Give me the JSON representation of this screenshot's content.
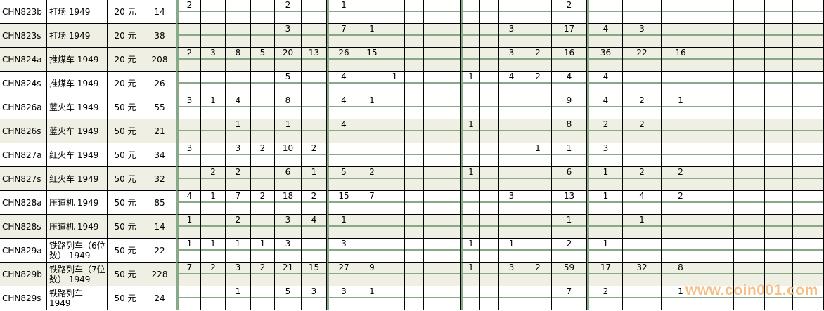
{
  "table": {
    "rows": [
      {
        "code": "CHN823b",
        "name": "打场 1949",
        "denom": "20 元",
        "count": "14",
        "shaded": false,
        "values": [
          "2",
          "",
          "",
          "",
          "2",
          "",
          "1",
          "",
          "",
          "",
          "",
          "",
          "",
          "",
          "",
          "",
          "2",
          "",
          "",
          "",
          "",
          "",
          "",
          ""
        ]
      },
      {
        "code": "CHN823s",
        "name": "打场 1949",
        "denom": "20 元",
        "count": "38",
        "shaded": true,
        "values": [
          "",
          "",
          "",
          "",
          "3",
          "",
          "7",
          "1",
          "",
          "",
          "",
          "",
          "",
          "",
          "3",
          "",
          "17",
          "4",
          "3",
          "",
          "",
          "",
          "",
          ""
        ]
      },
      {
        "code": "CHN824a",
        "name": "推煤车 1949",
        "denom": "20 元",
        "count": "208",
        "shaded": true,
        "values": [
          "2",
          "3",
          "8",
          "5",
          "20",
          "13",
          "26",
          "15",
          "",
          "",
          "",
          "",
          "",
          "",
          "3",
          "2",
          "16",
          "36",
          "22",
          "16",
          "",
          "",
          "",
          ""
        ]
      },
      {
        "code": "CHN824s",
        "name": "推煤车 1949",
        "denom": "20 元",
        "count": "26",
        "shaded": false,
        "values": [
          "",
          "",
          "",
          "",
          "5",
          "",
          "4",
          "",
          "1",
          "",
          "",
          "",
          "1",
          "",
          "4",
          "2",
          "4",
          "4",
          "",
          "",
          "",
          "",
          "",
          ""
        ]
      },
      {
        "code": "CHN826a",
        "name": "蓝火车 1949",
        "denom": "50 元",
        "count": "55",
        "shaded": false,
        "values": [
          "3",
          "1",
          "4",
          "",
          "8",
          "",
          "4",
          "1",
          "",
          "",
          "",
          "",
          "",
          "",
          "",
          "",
          "9",
          "4",
          "2",
          "1",
          "",
          "",
          "",
          ""
        ]
      },
      {
        "code": "CHN826s",
        "name": "蓝火车 1949",
        "denom": "50 元",
        "count": "21",
        "shaded": true,
        "values": [
          "",
          "",
          "1",
          "",
          "1",
          "",
          "4",
          "",
          "",
          "",
          "",
          "",
          "1",
          "",
          "",
          "",
          "8",
          "2",
          "2",
          "",
          "",
          "",
          "",
          ""
        ]
      },
      {
        "code": "CHN827a",
        "name": "红火车 1949",
        "denom": "50 元",
        "count": "34",
        "shaded": false,
        "values": [
          "3",
          "",
          "3",
          "2",
          "10",
          "2",
          "",
          "",
          "",
          "",
          "",
          "",
          "",
          "",
          "",
          "1",
          "1",
          "3",
          "",
          "",
          "",
          "",
          "",
          ""
        ]
      },
      {
        "code": "CHN827s",
        "name": "红火车 1949",
        "denom": "50 元",
        "count": "32",
        "shaded": true,
        "values": [
          "",
          "2",
          "2",
          "",
          "6",
          "1",
          "5",
          "2",
          "",
          "",
          "",
          "",
          "1",
          "",
          "",
          "",
          "6",
          "1",
          "2",
          "2",
          "",
          "",
          "",
          ""
        ]
      },
      {
        "code": "CHN828a",
        "name": "压道机 1949",
        "denom": "50 元",
        "count": "85",
        "shaded": false,
        "values": [
          "4",
          "1",
          "7",
          "2",
          "18",
          "2",
          "15",
          "7",
          "",
          "",
          "",
          "",
          "",
          "",
          "3",
          "",
          "13",
          "1",
          "4",
          "2",
          "",
          "",
          "",
          ""
        ]
      },
      {
        "code": "CHN828s",
        "name": "压道机 1949",
        "denom": "50 元",
        "count": "14",
        "shaded": true,
        "values": [
          "1",
          "",
          "2",
          "",
          "3",
          "4",
          "1",
          "",
          "",
          "",
          "",
          "",
          "",
          "",
          "",
          "",
          "1",
          "",
          "1",
          "",
          "",
          "",
          "",
          ""
        ]
      },
      {
        "code": "CHN829a",
        "name": "铁路列车（6位数） 1949",
        "denom": "50 元",
        "count": "22",
        "shaded": false,
        "values": [
          "1",
          "1",
          "1",
          "1",
          "3",
          "",
          "3",
          "",
          "",
          "",
          "",
          "",
          "1",
          "",
          "1",
          "",
          "2",
          "1",
          "",
          "",
          "",
          "",
          "",
          ""
        ]
      },
      {
        "code": "CHN829b",
        "name": "铁路列车（7位数） 1949",
        "denom": "50 元",
        "count": "228",
        "shaded": true,
        "values": [
          "7",
          "2",
          "3",
          "2",
          "21",
          "15",
          "27",
          "9",
          "",
          "",
          "",
          "",
          "1",
          "",
          "3",
          "2",
          "59",
          "17",
          "32",
          "8",
          "",
          "",
          "",
          ""
        ]
      },
      {
        "code": "CHN829s",
        "name": "铁路列车 1949",
        "denom": "50 元",
        "count": "24",
        "shaded": false,
        "values": [
          "",
          "",
          "1",
          "",
          "5",
          "3",
          "3",
          "1",
          "",
          "",
          "",
          "",
          "",
          "",
          "",
          "",
          "7",
          "2",
          "",
          "1",
          "",
          "",
          "",
          ""
        ]
      }
    ]
  },
  "watermark": "www.coin001.com",
  "colors": {
    "shade": "#efefe3",
    "grid_green": "#88a888",
    "watermark": "#f5b97a"
  }
}
